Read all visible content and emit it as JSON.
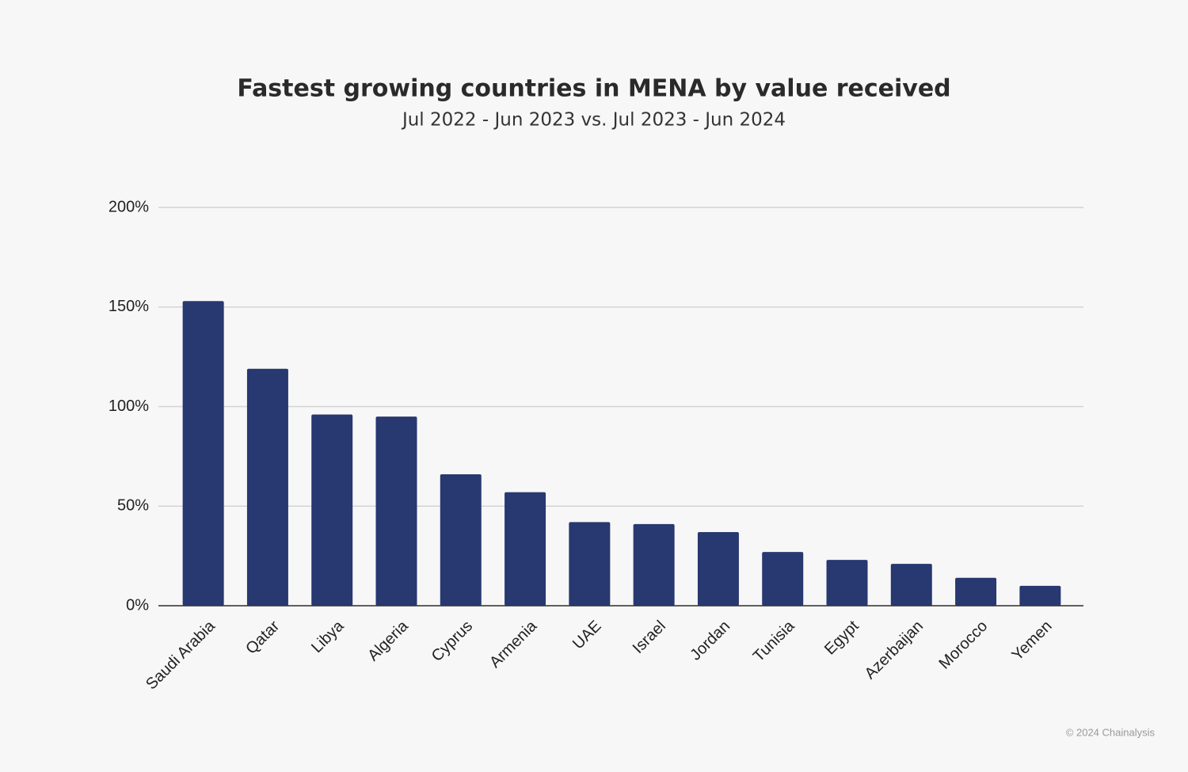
{
  "chart_data": {
    "type": "bar",
    "title": "Fastest growing countries in MENA by value received",
    "subtitle": "Jul 2022 - Jun 2023 vs. Jul 2023 - Jun 2024",
    "categories": [
      "Saudi Arabia",
      "Qatar",
      "Libya",
      "Algeria",
      "Cyprus",
      "Armenia",
      "UAE",
      "Israel",
      "Jordan",
      "Tunisia",
      "Egypt",
      "Azerbaijan",
      "Morocco",
      "Yemen"
    ],
    "values": [
      153,
      119,
      96,
      95,
      66,
      57,
      42,
      41,
      37,
      27,
      23,
      21,
      14,
      10
    ],
    "color": "#283870",
    "ylim": [
      0,
      200
    ],
    "yticks": [
      {
        "value": 0,
        "label": "0%"
      },
      {
        "value": 50,
        "label": "50%"
      },
      {
        "value": 100,
        "label": "100%"
      },
      {
        "value": 150,
        "label": "150%"
      },
      {
        "value": 200,
        "label": "200%"
      }
    ],
    "grid": true,
    "credit": "© 2024 Chainalysis"
  }
}
